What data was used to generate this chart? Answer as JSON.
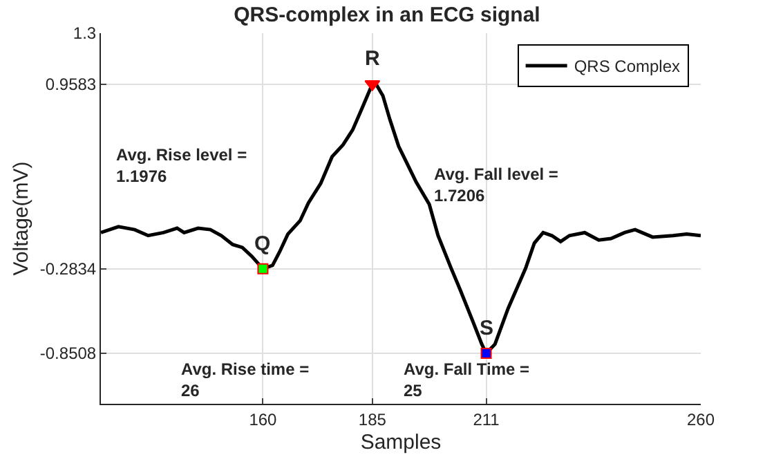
{
  "chart_data": {
    "type": "line",
    "title": "QRS-complex in an ECG signal",
    "xlabel": "Samples",
    "ylabel": "Voltage(mV)",
    "xlim": [
      123,
      260
    ],
    "ylim": [
      -1.19,
      1.3
    ],
    "xticks": [
      160,
      185,
      211,
      260
    ],
    "yticks": [
      -0.8508,
      -0.2834,
      0.9583,
      1.3
    ],
    "grid": true,
    "legend": "top right",
    "series": [
      {
        "name": "QRS Complex",
        "color": "#000000",
        "marker": "none",
        "line_style": "solid",
        "x": [
          123,
          127,
          130.7,
          133.8,
          137.3,
          140.4,
          142,
          145.2,
          148,
          150.5,
          153.1,
          155.3,
          157.5,
          160,
          162.2,
          163.8,
          165.7,
          168.5,
          170.4,
          173.2,
          175.8,
          178.3,
          180.5,
          182.7,
          185,
          186,
          187.4,
          189,
          191,
          193,
          195,
          198,
          200,
          203,
          205,
          208,
          210,
          211,
          213,
          216,
          220,
          222,
          224,
          226,
          228,
          230,
          233.5,
          236.7,
          239.5,
          242.6,
          245,
          249,
          253.7,
          256.8,
          260
        ],
        "values": [
          -0.04,
          0.0,
          -0.02,
          -0.06,
          -0.04,
          -0.01,
          -0.04,
          -0.01,
          -0.02,
          -0.06,
          -0.12,
          -0.14,
          -0.2,
          -0.2834,
          -0.26,
          -0.17,
          -0.05,
          0.04,
          0.16,
          0.29,
          0.47,
          0.55,
          0.65,
          0.8,
          0.9583,
          0.95,
          0.88,
          0.72,
          0.54,
          0.42,
          0.3,
          0.15,
          -0.06,
          -0.28,
          -0.42,
          -0.64,
          -0.79,
          -0.8508,
          -0.79,
          -0.55,
          -0.28,
          -0.11,
          -0.04,
          -0.06,
          -0.1,
          -0.06,
          -0.04,
          -0.09,
          -0.08,
          -0.04,
          -0.02,
          -0.07,
          -0.06,
          -0.05,
          -0.06
        ]
      },
      {
        "type": "scatter",
        "color": "#00ff00",
        "marker": "square",
        "x": [
          160
        ],
        "values": [
          -0.2834
        ]
      },
      {
        "type": "scatter",
        "color": "#ff0000",
        "marker": "triangle",
        "x": [
          185
        ],
        "values": [
          0.9583
        ]
      },
      {
        "type": "scatter",
        "color": "#0000ff",
        "marker": "square",
        "x": [
          211
        ],
        "values": [
          -0.8508
        ]
      }
    ],
    "annotations": [
      {
        "text": "Q",
        "x": 160,
        "y": -0.2834
      },
      {
        "text": "R",
        "x": 185,
        "y": 0.9583
      },
      {
        "text": "S",
        "x": 211,
        "y": -0.8508
      },
      "Avg. Rise level =\n1.1976",
      "Avg. Fall level =\n1.7206",
      "Avg. Rise time =\n26",
      "Avg. Fall Time =\n25"
    ]
  }
}
